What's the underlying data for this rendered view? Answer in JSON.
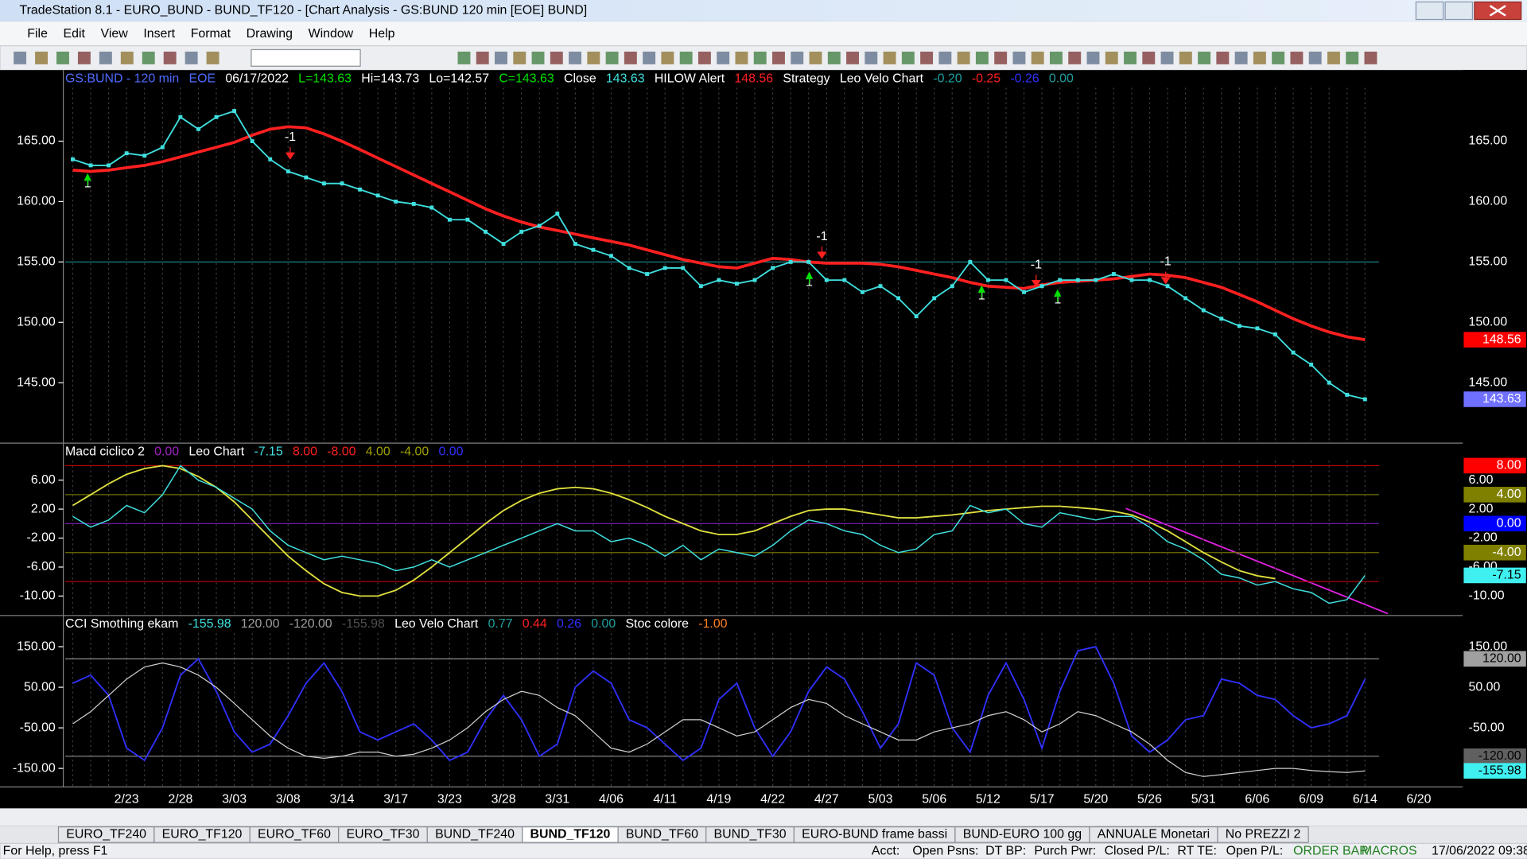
{
  "window": {
    "title": "TradeStation 8.1 - EURO_BUND - BUND_TF120 - [Chart Analysis - GS:BUND  120 min  [EOE] BUND]"
  },
  "menu": [
    "File",
    "Edit",
    "View",
    "Insert",
    "Format",
    "Drawing",
    "Window",
    "Help"
  ],
  "annotations": [
    "1",
    "-1",
    "1",
    "-1",
    "1",
    "-1",
    "1",
    "-1"
  ],
  "chart_data": {
    "type": "line",
    "categories": [
      null,
      null,
      null,
      "2/23",
      null,
      null,
      "2/28",
      null,
      null,
      "3/03",
      null,
      null,
      "3/08",
      null,
      null,
      "3/14",
      null,
      null,
      "3/17",
      null,
      null,
      "3/23",
      null,
      null,
      "3/28",
      null,
      null,
      "3/31",
      null,
      null,
      "4/06",
      null,
      null,
      "4/11",
      null,
      null,
      "4/19",
      null,
      null,
      "4/22",
      null,
      null,
      "4/27",
      null,
      null,
      "5/03",
      null,
      null,
      "5/06",
      null,
      null,
      "5/12",
      null,
      null,
      "5/17",
      null,
      null,
      "5/20",
      null,
      null,
      "5/26",
      null,
      null,
      "5/31",
      null,
      null,
      "6/06",
      null,
      null,
      "6/09",
      null,
      null,
      "6/14",
      null,
      null,
      "6/20"
    ],
    "panes": [
      {
        "header": [
          {
            "text": "GS:BUND - 120 min",
            "color": "#4f6bff"
          },
          {
            "text": "EOE",
            "color": "#4f6bff"
          },
          {
            "text": "06/17/2022",
            "color": "#ffffff"
          },
          {
            "text": "L=143.63",
            "color": "#00e000"
          },
          {
            "text": "Hi=143.73",
            "color": "#ffffff"
          },
          {
            "text": "Lo=142.57",
            "color": "#ffffff"
          },
          {
            "text": "C=143.63",
            "color": "#00e000"
          },
          {
            "text": "Close",
            "color": "#ffffff"
          },
          {
            "text": "143.63",
            "color": "#40e0e0"
          },
          {
            "text": "HILOW Alert",
            "color": "#ffffff"
          },
          {
            "text": "148.56",
            "color": "#ff2020"
          },
          {
            "text": "Strategy",
            "color": "#ffffff"
          },
          {
            "text": "Leo Velo Chart",
            "color": "#ffffff"
          },
          {
            "text": "-0.20",
            "color": "#20a0a0"
          },
          {
            "text": "-0.25",
            "color": "#ff2020"
          },
          {
            "text": "-0.26",
            "color": "#3030ff"
          },
          {
            "text": "0.00",
            "color": "#20a0a0"
          }
        ],
        "ylim": [
          140.4,
          170.4
        ],
        "yticks": [
          {
            "value": 165,
            "label": "165.00"
          },
          {
            "value": 160,
            "label": "160.00"
          },
          {
            "value": 155,
            "label": "155.00"
          },
          {
            "value": 150,
            "label": "150.00"
          },
          {
            "value": 145,
            "label": "145.00"
          }
        ],
        "levels": [
          {
            "value": 155,
            "color": "#1a8080"
          }
        ],
        "series": [
          {
            "name": "Leo Velo Chart",
            "color": "#ff2020",
            "width": 3,
            "markers": false,
            "values": [
              162.6,
              162.5,
              162.6,
              162.8,
              163,
              163.3,
              163.7,
              164.1,
              164.5,
              164.9,
              165.5,
              166,
              166.2,
              166.1,
              165.6,
              165,
              164.3,
              163.6,
              162.9,
              162.2,
              161.5,
              160.8,
              160.1,
              159.4,
              158.8,
              158.3,
              157.9,
              157.6,
              157.3,
              157,
              156.7,
              156.4,
              156,
              155.6,
              155.2,
              154.9,
              154.6,
              154.5,
              154.9,
              155.3,
              155.2,
              155,
              154.9,
              154.9,
              154.9,
              154.8,
              154.6,
              154.3,
              154,
              153.7,
              153.3,
              153,
              152.9,
              152.8,
              153.1,
              153.3,
              153.4,
              153.5,
              153.6,
              153.8,
              154,
              153.9,
              153.7,
              153.3,
              152.9,
              152.3,
              151.7,
              151,
              150.3,
              149.7,
              149.2,
              148.8,
              148.56,
              null,
              null,
              null
            ]
          },
          {
            "name": "Close",
            "color": "#40e0e0",
            "width": 1.5,
            "markers": true,
            "values": [
              163.5,
              163,
              163,
              164,
              163.8,
              164.5,
              167,
              166,
              167,
              167.5,
              165,
              163.5,
              162.5,
              162,
              161.5,
              161.5,
              161,
              160.5,
              160,
              159.8,
              159.5,
              158.5,
              158.5,
              157.5,
              156.5,
              157.5,
              158,
              159,
              156.5,
              156,
              155.5,
              154.5,
              154,
              154.5,
              154.5,
              153,
              153.5,
              153.2,
              153.5,
              154.5,
              155,
              155,
              153.5,
              153.5,
              152.5,
              153,
              152,
              150.5,
              152,
              153,
              155,
              153.5,
              153.5,
              152.5,
              153,
              153.5,
              153.5,
              153.5,
              154,
              153.5,
              153.5,
              153,
              152,
              151,
              150.3,
              149.7,
              149.5,
              149,
              147.5,
              146.5,
              145,
              144,
              143.63,
              null,
              null,
              null
            ]
          }
        ],
        "badges": [
          {
            "value": 148.56,
            "label": "148.56",
            "bg": "#ff0000",
            "fg": "#ffffff"
          },
          {
            "value": 143.63,
            "label": "143.63",
            "bg": "#7070ff",
            "fg": "#ffffff"
          }
        ]
      },
      {
        "header": [
          {
            "text": "Macd ciclico 2",
            "color": "#ffffff"
          },
          {
            "text": "0.00",
            "color": "#a020c0"
          },
          {
            "text": "Leo Chart",
            "color": "#ffffff"
          },
          {
            "text": "-7.15",
            "color": "#40e0e0"
          },
          {
            "text": "8.00",
            "color": "#ff2020"
          },
          {
            "text": "-8.00",
            "color": "#ff2020"
          },
          {
            "text": "4.00",
            "color": "#a0a000"
          },
          {
            "text": "-4.00",
            "color": "#a0a000"
          },
          {
            "text": "0.00",
            "color": "#3030ff"
          }
        ],
        "ylim": [
          -12.15,
          8.82
        ],
        "yticks": [
          {
            "value": 6,
            "label": "6.00"
          },
          {
            "value": 2,
            "label": "2.00"
          },
          {
            "value": -2,
            "label": "-2.00"
          },
          {
            "value": -6,
            "label": "-6.00"
          },
          {
            "value": -10,
            "label": "-10.00"
          }
        ],
        "levels": [
          {
            "value": 8,
            "color": "#c00000"
          },
          {
            "value": 4,
            "color": "#707000"
          },
          {
            "value": 0,
            "color": "#8020c0"
          },
          {
            "value": -4,
            "color": "#707000"
          },
          {
            "value": -8,
            "color": "#c00000"
          }
        ],
        "series": [
          {
            "name": "Macd",
            "color": "#e0e040",
            "width": 1.5,
            "markers": false,
            "values": [
              2.5,
              4,
              5.5,
              6.8,
              7.6,
              8,
              7.6,
              6.5,
              5,
              3,
              0.5,
              -2,
              -4.5,
              -6.5,
              -8.3,
              -9.5,
              -10,
              -10,
              -9.2,
              -7.8,
              -6,
              -4,
              -2,
              0,
              1.8,
              3.2,
              4.2,
              4.8,
              5,
              4.8,
              4.2,
              3.3,
              2.2,
              1,
              0,
              -1,
              -1.5,
              -1.5,
              -1,
              0,
              1,
              1.8,
              2,
              2,
              1.6,
              1.2,
              0.8,
              0.8,
              1,
              1.2,
              1.5,
              1.8,
              2,
              2.2,
              2.4,
              2.4,
              2.2,
              2,
              1.7,
              1.2,
              0.2,
              -1,
              -2.5,
              -4,
              -5.3,
              -6.5,
              -7.2,
              -7.6,
              null,
              null,
              null,
              null,
              null,
              null,
              null,
              null
            ]
          },
          {
            "name": "Leo Chart",
            "color": "#40e0e0",
            "width": 1.2,
            "markers": false,
            "values": [
              1,
              -0.5,
              0.5,
              2.5,
              1.5,
              4,
              8,
              6,
              5,
              3.5,
              2,
              -1,
              -3,
              -4,
              -5,
              -4.5,
              -5,
              -5.5,
              -6.5,
              -6,
              -5,
              -6,
              -5,
              -4,
              -3,
              -2,
              -1,
              0,
              -1,
              -1,
              -2.5,
              -2,
              -3,
              -4.5,
              -3,
              -5,
              -3.5,
              -4,
              -4.5,
              -3,
              -1,
              0.5,
              0,
              -1,
              -1.5,
              -3,
              -4,
              -3.5,
              -1.5,
              -1,
              2.5,
              1.5,
              2,
              0,
              -0.5,
              1.5,
              1,
              0.5,
              1,
              1,
              -0.5,
              -2.5,
              -3.5,
              -5,
              -7,
              -7.5,
              -8.5,
              -8,
              -9,
              -9.5,
              -11,
              -10.5,
              -7.15,
              null,
              null,
              null
            ]
          }
        ],
        "badges": [
          {
            "value": 8,
            "label": "8.00",
            "bg": "#ff0000",
            "fg": "#ffffff"
          },
          {
            "value": 4,
            "label": "4.00",
            "bg": "#808000",
            "fg": "#ffffff"
          },
          {
            "value": 0,
            "label": "0.00",
            "bg": "#0000ff",
            "fg": "#ffffff"
          },
          {
            "value": -4,
            "label": "-4.00",
            "bg": "#808000",
            "fg": "#ffffff"
          },
          {
            "value": -7.15,
            "label": "-7.15",
            "bg": "#40f0f0",
            "fg": "#000000"
          }
        ]
      },
      {
        "header": [
          {
            "text": "CCI Smothing ekam",
            "color": "#ffffff"
          },
          {
            "text": "-155.98",
            "color": "#40e0e0"
          },
          {
            "text": "120.00",
            "color": "#a0a0a0"
          },
          {
            "text": "-120.00",
            "color": "#a0a0a0"
          },
          {
            "text": "-155.98",
            "color": "#505050"
          },
          {
            "text": "Leo Velo Chart",
            "color": "#ffffff"
          },
          {
            "text": "0.77",
            "color": "#20a0a0"
          },
          {
            "text": "0.44",
            "color": "#ff2020"
          },
          {
            "text": "0.26",
            "color": "#3030ff"
          },
          {
            "text": "0.00",
            "color": "#20a0a0"
          },
          {
            "text": "Stoc colore",
            "color": "#ffffff"
          },
          {
            "text": "-1.00",
            "color": "#ff8020"
          }
        ],
        "ylim": [
          -190.8,
          188.4
        ],
        "yticks": [
          {
            "value": 150,
            "label": "150.00"
          },
          {
            "value": 50,
            "label": "50.00"
          },
          {
            "value": -50,
            "label": "-50.00"
          },
          {
            "value": -150,
            "label": "-150.00"
          }
        ],
        "levels": [
          {
            "value": 120,
            "color": "#909090"
          },
          {
            "value": -120,
            "color": "#909090"
          }
        ],
        "series": [
          {
            "name": "CCI",
            "color": "#3030ff",
            "width": 1.5,
            "markers": false,
            "values": [
              60,
              80,
              30,
              -100,
              -130,
              -50,
              80,
              120,
              40,
              -60,
              -110,
              -90,
              -20,
              60,
              110,
              40,
              -60,
              -80,
              -60,
              -40,
              -80,
              -130,
              -110,
              -30,
              30,
              -30,
              -120,
              -90,
              50,
              90,
              60,
              -30,
              -50,
              -90,
              -130,
              -100,
              20,
              60,
              -50,
              -120,
              -60,
              40,
              100,
              70,
              -10,
              -100,
              -40,
              110,
              80,
              -50,
              -110,
              30,
              110,
              20,
              -100,
              40,
              140,
              150,
              60,
              -70,
              -110,
              -80,
              -30,
              -20,
              70,
              60,
              30,
              20,
              -20,
              -50,
              -40,
              -20,
              70,
              null,
              null,
              null
            ]
          },
          {
            "name": "Smothing",
            "color": "#d0d0d0",
            "width": 1,
            "markers": false,
            "values": [
              -40,
              -10,
              30,
              70,
              100,
              110,
              100,
              80,
              50,
              10,
              -30,
              -70,
              -100,
              -120,
              -125,
              -120,
              -110,
              -110,
              -120,
              -115,
              -100,
              -80,
              -50,
              -10,
              20,
              40,
              30,
              0,
              -20,
              -60,
              -100,
              -110,
              -90,
              -60,
              -30,
              -30,
              -50,
              -70,
              -60,
              -30,
              0,
              20,
              10,
              -20,
              -40,
              -60,
              -80,
              -80,
              -60,
              -50,
              -40,
              -20,
              -10,
              -30,
              -60,
              -40,
              -10,
              -20,
              -40,
              -60,
              -90,
              -130,
              -160,
              -170,
              -165,
              -160,
              -155,
              -150,
              -150,
              -155,
              -158,
              -160,
              -155.98,
              null,
              null,
              null
            ]
          }
        ],
        "badges": [
          {
            "value": 120,
            "label": "120.00",
            "bg": "#a0a0a0",
            "fg": "#000000"
          },
          {
            "value": -120,
            "label": "-120.00",
            "bg": "#606060",
            "fg": "#000000"
          },
          {
            "value": -155.98,
            "label": "-155.98",
            "bg": "#40f0f0",
            "fg": "#000000"
          }
        ]
      }
    ]
  },
  "tabs": [
    "EURO_TF240",
    "EURO_TF120",
    "EURO_TF60",
    "EURO_TF30",
    "BUND_TF240",
    "BUND_TF120",
    "BUND_TF60",
    "BUND_TF30",
    "EURO-BUND frame bassi",
    "BUND-EURO 100 gg",
    "ANNUALE Monetari",
    "No PREZZI 2"
  ],
  "active_tab": 5,
  "status": [
    "For Help, press F1",
    "Acct:",
    "Open Psns:",
    "DT BP:",
    "Purch Pwr:",
    "Closed P/L:",
    "RT TE:",
    "Open P/L:",
    "ORDER BAR",
    "MACROS",
    "17/06/2022 09:38"
  ]
}
